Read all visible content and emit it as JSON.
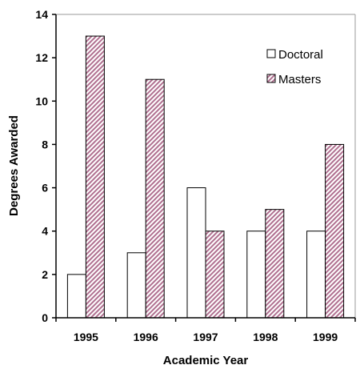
{
  "chart_data": {
    "type": "bar",
    "xlabel": "Academic Year",
    "ylabel": "Degrees Awarded",
    "categories": [
      "1995",
      "1996",
      "1997",
      "1998",
      "1999"
    ],
    "series": [
      {
        "name": "Doctoral",
        "values": [
          2,
          3,
          6,
          4,
          4
        ]
      },
      {
        "name": "Masters",
        "values": [
          13,
          11,
          4,
          5,
          8
        ]
      }
    ],
    "ylim": [
      0,
      14
    ],
    "yticks": [
      "0",
      "2",
      "4",
      "6",
      "8",
      "10",
      "12",
      "14"
    ],
    "grid": false,
    "legend_position": "top-right"
  },
  "colors": {
    "doctoral_fill": "#ffffff",
    "masters_stripe": "#b07090",
    "bar_edge": "#000000"
  }
}
